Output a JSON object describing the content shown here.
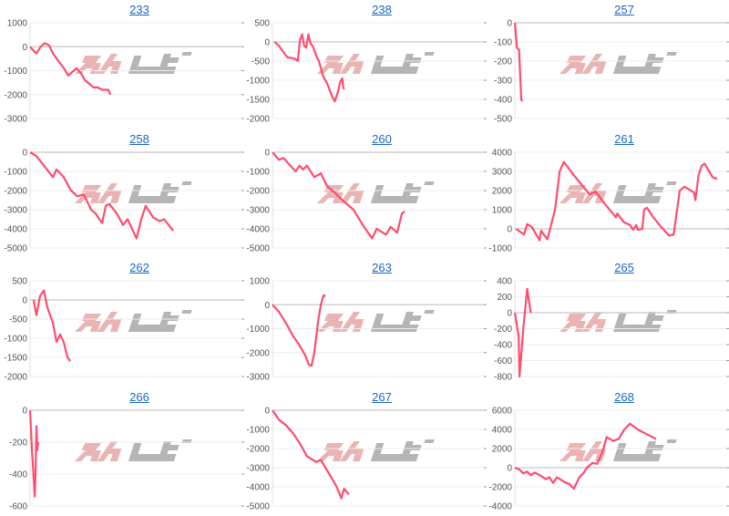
{
  "watermark": {
    "text": "みんレポ",
    "colors": {
      "min": "#eab4b4",
      "repo": "#b5b5b5"
    }
  },
  "line_color": "#ff4d6d",
  "chart_data": [
    {
      "type": "line",
      "title": "233",
      "ylim": [
        -3000,
        1000
      ],
      "ystep": 1000,
      "xlim": [
        0,
        100
      ],
      "grid": true,
      "x": [
        0,
        2,
        3,
        5,
        7,
        9,
        11,
        13,
        16,
        18,
        20,
        22,
        24,
        26,
        28,
        30,
        32,
        34,
        37,
        38
      ],
      "y": [
        0,
        -200,
        -280,
        0,
        150,
        50,
        -300,
        -550,
        -900,
        -1200,
        -1050,
        -900,
        -1100,
        -1400,
        -1550,
        -1700,
        -1700,
        -1800,
        -1800,
        -2000
      ]
    },
    {
      "type": "line",
      "title": "238",
      "ylim": [
        -2000,
        500
      ],
      "ystep": 500,
      "xlim": [
        0,
        100
      ],
      "grid": true,
      "x": [
        1,
        3,
        5,
        7,
        9,
        11,
        12,
        13,
        14,
        15,
        16,
        17,
        18,
        19,
        21,
        22,
        24,
        26,
        28,
        29.5,
        31,
        32,
        33,
        33.5,
        34
      ],
      "y": [
        0,
        -100,
        -250,
        -400,
        -420,
        -450,
        -500,
        50,
        200,
        -100,
        -150,
        200,
        -50,
        -100,
        -400,
        -500,
        -900,
        -1100,
        -1400,
        -1550,
        -1300,
        -1050,
        -950,
        -1200,
        -1230
      ]
    },
    {
      "type": "line",
      "title": "257",
      "ylim": [
        -500,
        0
      ],
      "ystep": 100,
      "xlim": [
        0,
        100
      ],
      "grid": true,
      "x": [
        0,
        1,
        2,
        3,
        3.5
      ],
      "y": [
        0,
        -130,
        -140,
        -400,
        -410
      ]
    },
    {
      "type": "line",
      "title": "258",
      "ylim": [
        -5000,
        0
      ],
      "ystep": 1000,
      "xlim": [
        0,
        100
      ],
      "grid": true,
      "x": [
        0,
        3,
        7.3,
        10.8,
        12.5,
        15.9,
        19.4,
        22.4,
        25.4,
        28.9,
        31,
        34.1,
        35.8,
        37.5,
        41,
        44,
        46.1,
        50.4,
        52.6,
        54.7,
        58.2,
        61.2,
        63.4,
        67.7
      ],
      "y": [
        0,
        -200,
        -800,
        -1300,
        -900,
        -1300,
        -2000,
        -2300,
        -2200,
        -3000,
        -3200,
        -3700,
        -2800,
        -2700,
        -3200,
        -3800,
        -3500,
        -4500,
        -3500,
        -2800,
        -3400,
        -3600,
        -3500,
        -4100
      ]
    },
    {
      "type": "line",
      "title": "260",
      "ylim": [
        -5000,
        0
      ],
      "ystep": 1000,
      "xlim": [
        0,
        100
      ],
      "grid": true,
      "x": [
        0,
        3.1,
        5.3,
        8.4,
        11,
        12.8,
        14.5,
        16.3,
        19.8,
        22.9,
        26,
        29.5,
        33,
        38.3,
        42.7,
        47.1,
        49.3,
        53.7,
        55.9,
        59,
        61.2,
        62.6
      ],
      "y": [
        0,
        -400,
        -300,
        -700,
        -1000,
        -700,
        -900,
        -700,
        -1300,
        -1100,
        -1800,
        -2100,
        -2500,
        -3000,
        -3800,
        -4500,
        -4000,
        -4300,
        -3900,
        -4200,
        -3200,
        -3100
      ]
    },
    {
      "type": "line",
      "title": "261",
      "ylim": [
        -1000,
        4000
      ],
      "ystep": 1000,
      "xlim": [
        0,
        100
      ],
      "grid": true,
      "x": [
        0.6,
        4.3,
        5.8,
        8,
        11.7,
        12.4,
        15.4,
        19,
        21.2,
        23.2,
        27.9,
        35.3,
        38.2,
        42.6,
        47.8,
        48.5,
        51.5,
        54.4,
        55.9,
        57.4,
        58.1,
        60.3,
        61.1,
        62.5,
        65.5,
        69.2,
        72.9,
        75.1,
        78,
        80.2,
        84.7,
        85.4,
        86.9,
        88.4,
        89.8,
        93.5,
        95.7
      ],
      "y": [
        0,
        -300,
        250,
        100,
        -600,
        -100,
        -550,
        1000,
        3000,
        3500,
        2800,
        1800,
        1950,
        1300,
        600,
        800,
        350,
        200,
        -50,
        200,
        -50,
        0,
        1000,
        1100,
        600,
        100,
        -350,
        -300,
        2000,
        2200,
        1900,
        1500,
        2800,
        3300,
        3400,
        2700,
        2600
      ]
    },
    {
      "type": "line",
      "title": "262",
      "ylim": [
        -2000,
        500
      ],
      "ystep": 500,
      "xlim": [
        0,
        100
      ],
      "grid": true,
      "x": [
        1.7,
        3,
        4.7,
        6.5,
        8.2,
        10.8,
        12.5,
        14.2,
        15.9,
        17.7,
        19
      ],
      "y": [
        0,
        -400,
        100,
        250,
        -200,
        -600,
        -1100,
        -900,
        -1100,
        -1500,
        -1600
      ]
    },
    {
      "type": "line",
      "title": "263",
      "ylim": [
        -3000,
        1000
      ],
      "ystep": 1000,
      "xlim": [
        0,
        100
      ],
      "grid": true,
      "x": [
        0,
        3.1,
        6.6,
        9.7,
        12.8,
        15.4,
        17.2,
        18.5,
        19.8,
        21.6,
        22.9,
        24.2,
        25.1
      ],
      "y": [
        0,
        -300,
        -800,
        -1300,
        -1700,
        -2100,
        -2500,
        -2550,
        -2000,
        -700,
        0,
        400,
        350
      ]
    },
    {
      "type": "line",
      "title": "265",
      "ylim": [
        -800,
        400
      ],
      "ystep": 200,
      "xlim": [
        0,
        100
      ],
      "grid": true,
      "x": [
        0,
        1.8,
        2.2,
        4,
        5.8,
        7.5
      ],
      "y": [
        0,
        -300,
        -800,
        -200,
        300,
        0
      ]
    },
    {
      "type": "line",
      "title": "266",
      "ylim": [
        -600,
        0
      ],
      "ystep": 200,
      "xlim": [
        0,
        100
      ],
      "grid": true,
      "x": [
        0,
        0.9,
        1.7,
        2.2,
        2.6,
        3,
        3.4,
        3.9
      ],
      "y": [
        0,
        -250,
        -420,
        -540,
        -400,
        -100,
        -250,
        -200
      ]
    },
    {
      "type": "line",
      "title": "267",
      "ylim": [
        -5000,
        0
      ],
      "ystep": 1000,
      "xlim": [
        0,
        100
      ],
      "grid": true,
      "x": [
        0,
        3.1,
        6.6,
        9.7,
        12.8,
        16.3,
        20.7,
        22.9,
        25.1,
        27.8,
        30.4,
        32.6,
        33.9,
        36.1
      ],
      "y": [
        0,
        -500,
        -800,
        -1200,
        -1700,
        -2400,
        -2700,
        -2600,
        -3000,
        -3500,
        -4000,
        -4600,
        -4100,
        -4400
      ]
    },
    {
      "type": "line",
      "title": "268",
      "ylim": [
        -4000,
        6000
      ],
      "ystep": 2000,
      "xlim": [
        0,
        100
      ],
      "grid": true,
      "x": [
        0,
        2.2,
        4,
        5.8,
        7.5,
        9.3,
        11.9,
        14.6,
        16.4,
        18.1,
        19.9,
        23.5,
        25.7,
        27.9,
        30.5,
        32.3,
        34.1,
        36.7,
        38.9,
        41.2,
        43.4,
        46.5,
        49.1,
        51.8,
        54.4,
        58,
        62.4,
        66.8
      ],
      "y": [
        0,
        -200,
        -600,
        -400,
        -800,
        -500,
        -800,
        -1200,
        -1000,
        -1600,
        -1000,
        -1500,
        -1700,
        -2200,
        -1000,
        -600,
        0,
        500,
        400,
        1500,
        3200,
        2800,
        3000,
        4000,
        4600,
        4000,
        3500,
        3000
      ]
    }
  ]
}
